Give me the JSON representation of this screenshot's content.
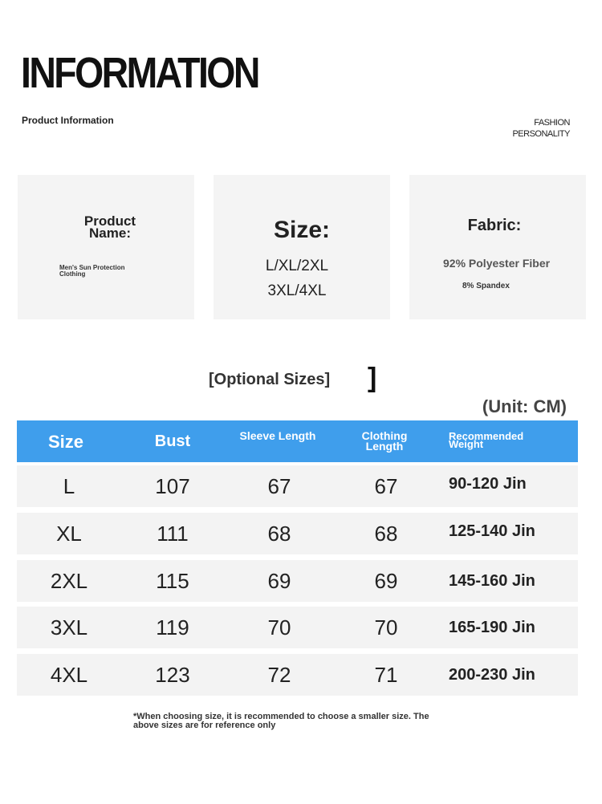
{
  "header": {
    "title": "INFORMATION",
    "subtitle": "Product Information",
    "tag_line1": "FASHION",
    "tag_line2": "PERSONALITY"
  },
  "cards": {
    "product_name": {
      "label": "Product Name:",
      "value": "Men's Sun Protection Clothing"
    },
    "size": {
      "label": "Size:",
      "value_line1": "L/XL/2XL",
      "value_line2": "3XL/4XL"
    },
    "fabric": {
      "label": "Fabric:",
      "value_line1": "92% Polyester Fiber",
      "value_line2": "8% Spandex"
    }
  },
  "table": {
    "caption": "[Optional Sizes]",
    "bracket": "]",
    "unit": "(Unit: CM)",
    "headers": {
      "size": "Size",
      "bust": "Bust",
      "sleeve": "Sleeve Length",
      "clothing": "Clothing Length",
      "weight": "Recommended Weight"
    },
    "rows": [
      {
        "size": "L",
        "bust": "107",
        "sleeve": "67",
        "clothing": "67",
        "weight": "90-120 Jin"
      },
      {
        "size": "XL",
        "bust": "111",
        "sleeve": "68",
        "clothing": "68",
        "weight": "125-140 Jin"
      },
      {
        "size": "2XL",
        "bust": "115",
        "sleeve": "69",
        "clothing": "69",
        "weight": "145-160 Jin"
      },
      {
        "size": "3XL",
        "bust": "119",
        "sleeve": "70",
        "clothing": "70",
        "weight": "165-190 Jin"
      },
      {
        "size": "4XL",
        "bust": "123",
        "sleeve": "72",
        "clothing": "71",
        "weight": "200-230 Jin"
      }
    ],
    "header_color": "#3f9eec"
  },
  "note": "*When choosing size, it is recommended to choose a smaller size. The above sizes are for reference only"
}
